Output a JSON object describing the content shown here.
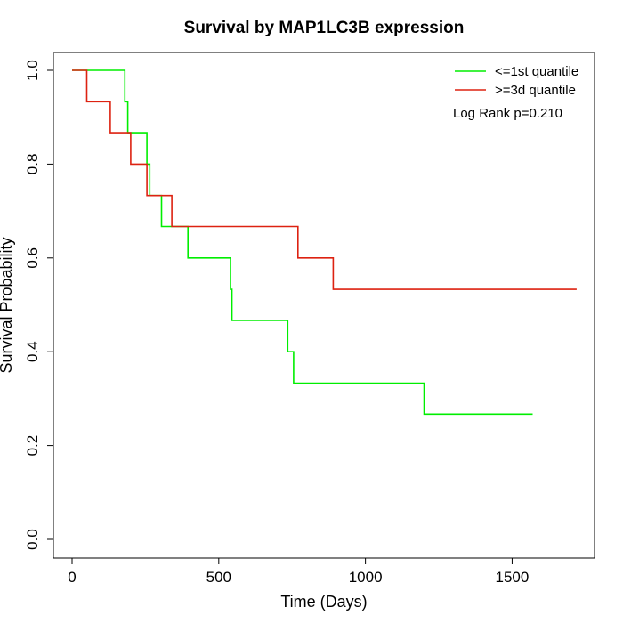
{
  "chart_data": {
    "type": "line",
    "step": true,
    "title": "Survival by MAP1LC3B expression",
    "xlabel": "Time (Days)",
    "ylabel": "Survival Probability",
    "xlim": [
      0,
      1800
    ],
    "ylim": [
      0,
      1.0
    ],
    "x_ticks": [
      0,
      500,
      1000,
      1500
    ],
    "x_tick_labels": [
      "0",
      "500",
      "1000",
      "1500"
    ],
    "y_ticks": [
      0.0,
      0.2,
      0.4,
      0.6,
      0.8,
      1.0
    ],
    "y_tick_labels": [
      "0.0",
      "0.2",
      "0.4",
      "0.6",
      "0.8",
      "1.0"
    ],
    "grid": false,
    "legend_position": "top-right",
    "annotation": "Log Rank p=0.210",
    "series": [
      {
        "name": "<=1st quantile",
        "color": "#00ee00",
        "points": [
          [
            0,
            1.0
          ],
          [
            180,
            1.0
          ],
          [
            180,
            0.933
          ],
          [
            190,
            0.933
          ],
          [
            190,
            0.867
          ],
          [
            255,
            0.867
          ],
          [
            255,
            0.8
          ],
          [
            265,
            0.8
          ],
          [
            265,
            0.733
          ],
          [
            305,
            0.733
          ],
          [
            305,
            0.667
          ],
          [
            395,
            0.667
          ],
          [
            395,
            0.6
          ],
          [
            540,
            0.6
          ],
          [
            540,
            0.533
          ],
          [
            545,
            0.533
          ],
          [
            545,
            0.467
          ],
          [
            735,
            0.467
          ],
          [
            735,
            0.4
          ],
          [
            755,
            0.4
          ],
          [
            755,
            0.333
          ],
          [
            1200,
            0.333
          ],
          [
            1200,
            0.267
          ],
          [
            1570,
            0.267
          ]
        ]
      },
      {
        "name": ">=3d quantile",
        "color": "#dd2211",
        "points": [
          [
            0,
            1.0
          ],
          [
            50,
            1.0
          ],
          [
            50,
            0.933
          ],
          [
            130,
            0.933
          ],
          [
            130,
            0.867
          ],
          [
            200,
            0.867
          ],
          [
            200,
            0.8
          ],
          [
            255,
            0.8
          ],
          [
            255,
            0.733
          ],
          [
            340,
            0.733
          ],
          [
            340,
            0.667
          ],
          [
            770,
            0.667
          ],
          [
            770,
            0.6
          ],
          [
            890,
            0.6
          ],
          [
            890,
            0.533
          ],
          [
            1720,
            0.533
          ]
        ]
      }
    ]
  }
}
